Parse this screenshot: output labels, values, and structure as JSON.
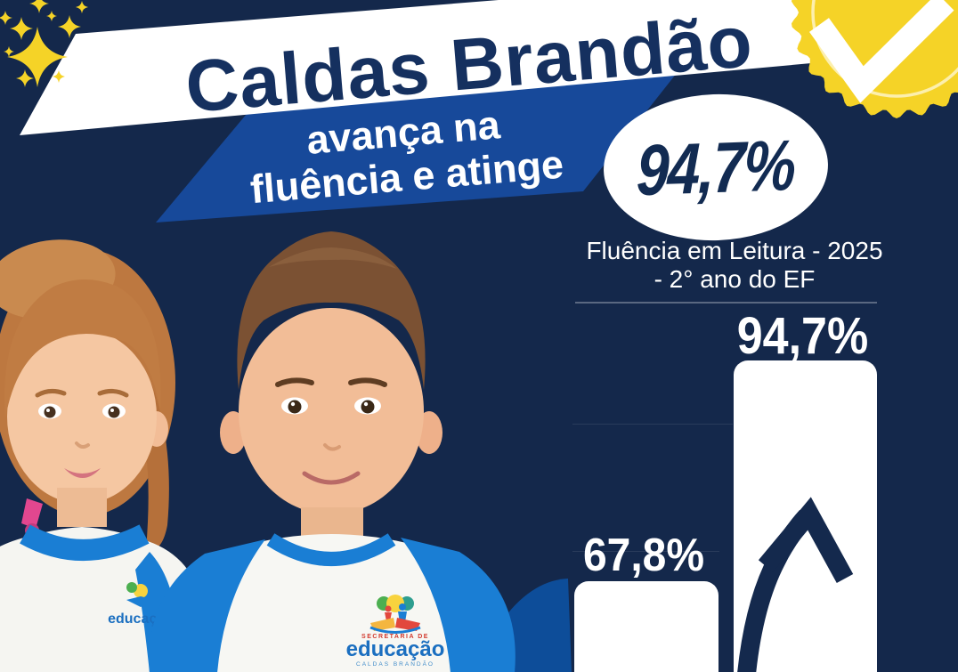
{
  "poster": {
    "title": "Caldas Brandão",
    "tagline_line1": "avança na",
    "tagline_line2": "fluência e atinge",
    "highlight_value": "94,7%",
    "chart_heading_line1": "Fluência em Leitura - 2025",
    "chart_heading_line2": "- 2° ano do EF"
  },
  "uniform_logo": {
    "top": "SECRETARIA DE",
    "main": "educação",
    "bottom": "CALDAS BRANDÃO"
  },
  "icons": {
    "verified_badge": "scalloped-seal-with-check",
    "check": "✔",
    "sparkles": "✦",
    "growth_arrow": "↗"
  },
  "colors": {
    "background_navy": "#14284b",
    "banner_white": "#ffffff",
    "band_blue": "#17499a",
    "title_navy": "#15305f",
    "badge_yellow": "#f5d327",
    "bar_white": "#ffffff",
    "shirt_blue": "#1a7ed4",
    "logo_blue": "#1b6fc0",
    "logo_red": "#d23b2f",
    "hair_girl": "#c07c43",
    "hair_boy": "#7b5133"
  },
  "chart_data": {
    "type": "bar",
    "categories": [
      "",
      ""
    ],
    "values": [
      67.8,
      94.7
    ],
    "data_labels": [
      "67,8%",
      "94,7%"
    ],
    "title": "Fluência em Leitura - 2025 - 2° ano do EF",
    "xlabel": "",
    "ylabel": "",
    "ylim": [
      0,
      100
    ],
    "grid": false,
    "legend": false,
    "bar_color": "#ffffff",
    "annotation": "upward curved arrow inside tallest bar"
  }
}
